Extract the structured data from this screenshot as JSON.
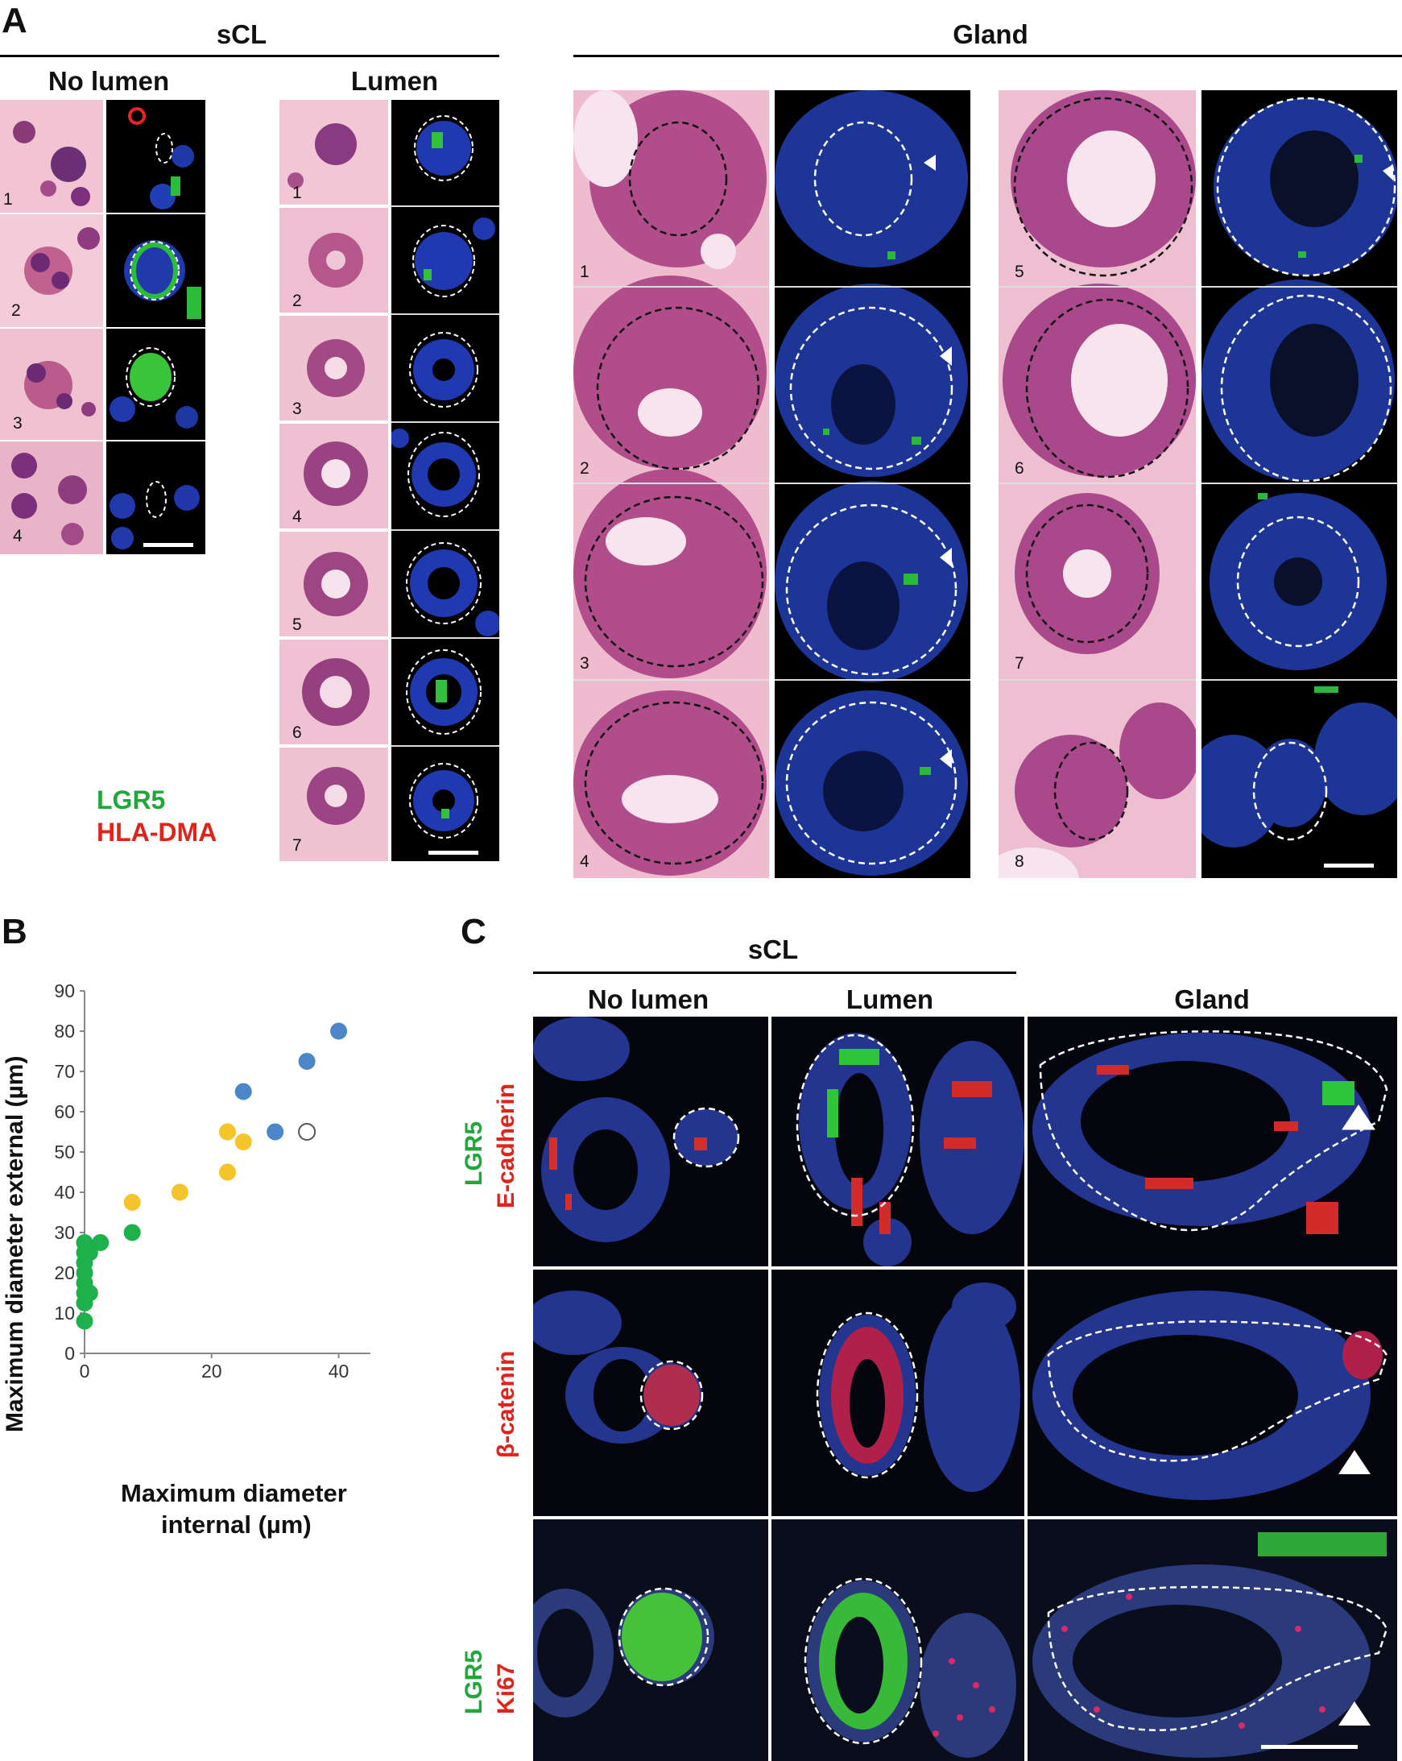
{
  "panel_a": {
    "letter": "A",
    "scl_header": "sCL",
    "gland_header": "Gland",
    "no_lumen_header": "No lumen",
    "lumen_header": "Lumen",
    "no_lumen_numbers": [
      "1",
      "2",
      "3",
      "4"
    ],
    "lumen_numbers": [
      "1",
      "2",
      "3",
      "4",
      "5",
      "6",
      "7"
    ],
    "gland_left_numbers": [
      "1",
      "2",
      "3",
      "4"
    ],
    "gland_right_numbers": [
      "5",
      "6",
      "7",
      "8"
    ],
    "legend": {
      "lgr5": "LGR5",
      "hla": "HLA-DMA"
    }
  },
  "panel_b": {
    "letter": "B",
    "xlabel_line1": "Maximum diameter",
    "xlabel_line2": "internal (µm)",
    "ylabel": "Maximum diameter external (µm)"
  },
  "panel_c": {
    "letter": "C",
    "scl_header": "sCL",
    "col_no_lumen": "No lumen",
    "col_lumen": "Lumen",
    "col_gland": "Gland",
    "row1_green": "LGR5",
    "row1_red": "E-cadherin",
    "row2_red": "β-catenin",
    "row3_green": "LGR5",
    "row3_red": "Ki67"
  },
  "chart_data": {
    "type": "scatter",
    "xlabel": "Maximum diameter internal (µm)",
    "ylabel": "Maximum diameter external (µm)",
    "xlim": [
      0,
      45
    ],
    "ylim": [
      0,
      90
    ],
    "xticks": [
      0,
      20,
      40
    ],
    "yticks": [
      0,
      10,
      20,
      30,
      40,
      50,
      60,
      70,
      80,
      90
    ],
    "colors": {
      "no_lumen": "#1db04b",
      "lumen": "#f5c42a",
      "gland": "#4a86c8"
    },
    "series": [
      {
        "key": "no_lumen",
        "style": "filled",
        "points": [
          [
            0,
            8
          ],
          [
            0,
            12.5
          ],
          [
            0,
            15
          ],
          [
            0,
            17.5
          ],
          [
            0,
            20
          ],
          [
            0,
            22.5
          ],
          [
            0,
            25
          ],
          [
            0,
            27.5
          ],
          [
            0.8,
            15
          ],
          [
            0.8,
            25
          ],
          [
            2.5,
            27.5
          ],
          [
            7.5,
            30
          ]
        ]
      },
      {
        "key": "lumen",
        "style": "filled",
        "points": [
          [
            7.5,
            37.5
          ],
          [
            15,
            40
          ],
          [
            22.5,
            45
          ],
          [
            22.5,
            55
          ],
          [
            25,
            52.5
          ]
        ]
      },
      {
        "key": "gland",
        "style": "filled",
        "points": [
          [
            25,
            65
          ],
          [
            30,
            55
          ],
          [
            35,
            72.5
          ],
          [
            40,
            80
          ]
        ]
      },
      {
        "key": "gland",
        "style": "open",
        "points": [
          [
            35,
            55
          ]
        ]
      }
    ]
  }
}
